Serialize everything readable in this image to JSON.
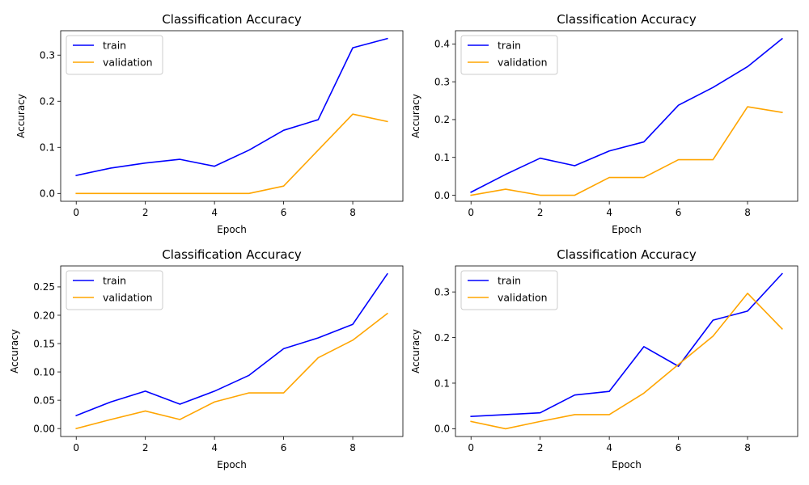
{
  "chart_data": [
    {
      "type": "line",
      "title": "Classification Accuracy",
      "xlabel": "Epoch",
      "ylabel": "Accuracy",
      "x": [
        0,
        1,
        2,
        3,
        4,
        5,
        6,
        7,
        8,
        9
      ],
      "xlim": [
        -0.45,
        9.45
      ],
      "xticks": [
        0,
        2,
        4,
        6,
        8
      ],
      "ylim": [
        -0.017,
        0.353
      ],
      "yticks": [
        0.0,
        0.1,
        0.2,
        0.3
      ],
      "ytick_labels": [
        "0.0",
        "0.1",
        "0.2",
        "0.3"
      ],
      "legend": "upper-left",
      "grid": false,
      "series": [
        {
          "name": "train",
          "color": "#0000ff",
          "values": [
            0.039,
            0.055,
            0.066,
            0.074,
            0.059,
            0.094,
            0.137,
            0.16,
            0.316,
            0.336
          ]
        },
        {
          "name": "validation",
          "color": "#ffa500",
          "values": [
            0.0,
            0.0,
            0.0,
            0.0,
            0.0,
            0.0,
            0.016,
            0.094,
            0.172,
            0.156
          ]
        }
      ]
    },
    {
      "type": "line",
      "title": "Classification Accuracy",
      "xlabel": "Epoch",
      "ylabel": "Accuracy",
      "x": [
        0,
        1,
        2,
        3,
        4,
        5,
        6,
        7,
        8,
        9
      ],
      "xlim": [
        -0.45,
        9.45
      ],
      "xticks": [
        0,
        2,
        4,
        6,
        8
      ],
      "ylim": [
        -0.016,
        0.435
      ],
      "yticks": [
        0.0,
        0.1,
        0.2,
        0.3,
        0.4
      ],
      "ytick_labels": [
        "0.0",
        "0.1",
        "0.2",
        "0.3",
        "0.4"
      ],
      "legend": "upper-left",
      "grid": false,
      "series": [
        {
          "name": "train",
          "color": "#0000ff",
          "values": [
            0.008,
            0.055,
            0.098,
            0.078,
            0.117,
            0.141,
            0.238,
            0.285,
            0.34,
            0.414
          ]
        },
        {
          "name": "validation",
          "color": "#ffa500",
          "values": [
            0.0,
            0.016,
            0.0,
            0.0,
            0.047,
            0.047,
            0.094,
            0.094,
            0.234,
            0.219
          ]
        }
      ]
    },
    {
      "type": "line",
      "title": "Classification Accuracy",
      "xlabel": "Epoch",
      "ylabel": "Accuracy",
      "x": [
        0,
        1,
        2,
        3,
        4,
        5,
        6,
        7,
        8,
        9
      ],
      "xlim": [
        -0.45,
        9.45
      ],
      "xticks": [
        0,
        2,
        4,
        6,
        8
      ],
      "ylim": [
        -0.014,
        0.287
      ],
      "yticks": [
        0.0,
        0.05,
        0.1,
        0.15,
        0.2,
        0.25
      ],
      "ytick_labels": [
        "0.00",
        "0.05",
        "0.10",
        "0.15",
        "0.20",
        "0.25"
      ],
      "legend": "upper-left",
      "grid": false,
      "series": [
        {
          "name": "train",
          "color": "#0000ff",
          "values": [
            0.023,
            0.047,
            0.066,
            0.043,
            0.066,
            0.094,
            0.141,
            0.16,
            0.184,
            0.273
          ]
        },
        {
          "name": "validation",
          "color": "#ffa500",
          "values": [
            0.0,
            0.016,
            0.031,
            0.016,
            0.047,
            0.063,
            0.063,
            0.125,
            0.156,
            0.203
          ]
        }
      ]
    },
    {
      "type": "line",
      "title": "Classification Accuracy",
      "xlabel": "Epoch",
      "ylabel": "Accuracy",
      "x": [
        0,
        1,
        2,
        3,
        4,
        5,
        6,
        7,
        8,
        9
      ],
      "xlim": [
        -0.45,
        9.45
      ],
      "xticks": [
        0,
        2,
        4,
        6,
        8
      ],
      "ylim": [
        -0.017,
        0.357
      ],
      "yticks": [
        0.0,
        0.1,
        0.2,
        0.3
      ],
      "ytick_labels": [
        "0.0",
        "0.1",
        "0.2",
        "0.3"
      ],
      "legend": "upper-left",
      "grid": false,
      "series": [
        {
          "name": "train",
          "color": "#0000ff",
          "values": [
            0.027,
            0.031,
            0.035,
            0.074,
            0.082,
            0.18,
            0.137,
            0.238,
            0.258,
            0.34
          ]
        },
        {
          "name": "validation",
          "color": "#ffa500",
          "values": [
            0.016,
            0.0,
            0.016,
            0.031,
            0.031,
            0.078,
            0.141,
            0.203,
            0.297,
            0.219
          ]
        }
      ]
    }
  ]
}
